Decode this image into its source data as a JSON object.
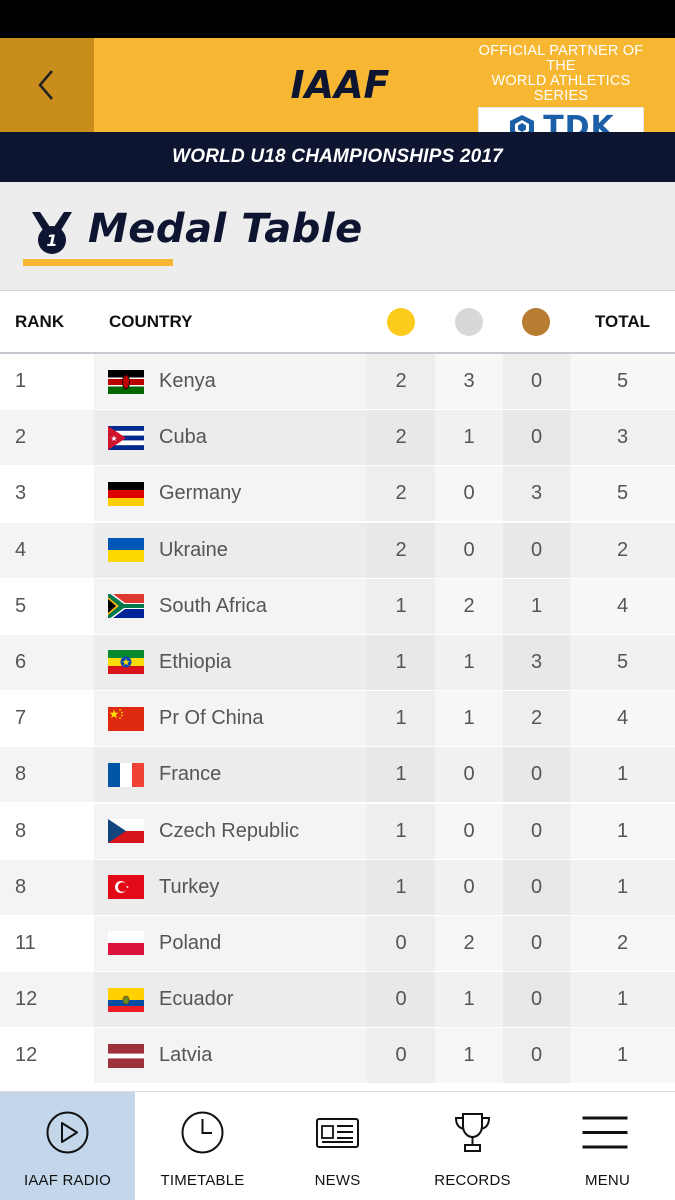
{
  "header": {
    "logo_text": "IAAF",
    "partner_line1": "OFFICIAL PARTNER OF THE",
    "partner_line2": "WORLD ATHLETICS SERIES",
    "sponsor": "TDK",
    "brand_color": "#f7b733"
  },
  "event": {
    "title": "WORLD U18 CHAMPIONSHIPS 2017"
  },
  "page": {
    "title": "Medal Table",
    "medal_badge": "1"
  },
  "table": {
    "headers": {
      "rank": "RANK",
      "country": "COUNTRY",
      "total": "TOTAL"
    },
    "medal_colors": {
      "gold": "#fccb1c",
      "silver": "#d8d8d8",
      "bronze": "#b87c33"
    },
    "rows": [
      {
        "rank": "1",
        "flag": "kenya-flag",
        "country": "Kenya",
        "gold": "2",
        "silver": "3",
        "bronze": "0",
        "total": "5"
      },
      {
        "rank": "2",
        "flag": "cuba-flag",
        "country": "Cuba",
        "gold": "2",
        "silver": "1",
        "bronze": "0",
        "total": "3"
      },
      {
        "rank": "3",
        "flag": "germany-flag",
        "country": "Germany",
        "gold": "2",
        "silver": "0",
        "bronze": "3",
        "total": "5"
      },
      {
        "rank": "4",
        "flag": "ukraine-flag",
        "country": "Ukraine",
        "gold": "2",
        "silver": "0",
        "bronze": "0",
        "total": "2"
      },
      {
        "rank": "5",
        "flag": "south-africa-flag",
        "country": "South Africa",
        "gold": "1",
        "silver": "2",
        "bronze": "1",
        "total": "4"
      },
      {
        "rank": "6",
        "flag": "ethiopia-flag",
        "country": "Ethiopia",
        "gold": "1",
        "silver": "1",
        "bronze": "3",
        "total": "5"
      },
      {
        "rank": "7",
        "flag": "china-flag",
        "country": "Pr Of China",
        "gold": "1",
        "silver": "1",
        "bronze": "2",
        "total": "4"
      },
      {
        "rank": "8",
        "flag": "france-flag",
        "country": "France",
        "gold": "1",
        "silver": "0",
        "bronze": "0",
        "total": "1"
      },
      {
        "rank": "8",
        "flag": "czech-flag",
        "country": "Czech Republic",
        "gold": "1",
        "silver": "0",
        "bronze": "0",
        "total": "1"
      },
      {
        "rank": "8",
        "flag": "turkey-flag",
        "country": "Turkey",
        "gold": "1",
        "silver": "0",
        "bronze": "0",
        "total": "1"
      },
      {
        "rank": "11",
        "flag": "poland-flag",
        "country": "Poland",
        "gold": "0",
        "silver": "2",
        "bronze": "0",
        "total": "2"
      },
      {
        "rank": "12",
        "flag": "ecuador-flag",
        "country": "Ecuador",
        "gold": "0",
        "silver": "1",
        "bronze": "0",
        "total": "1"
      },
      {
        "rank": "12",
        "flag": "latvia-flag",
        "country": "Latvia",
        "gold": "0",
        "silver": "1",
        "bronze": "0",
        "total": "1"
      }
    ]
  },
  "nav": {
    "items": [
      {
        "label": "IAAF RADIO",
        "icon": "play-circle-icon",
        "active": true
      },
      {
        "label": "TIMETABLE",
        "icon": "clock-icon",
        "active": false
      },
      {
        "label": "NEWS",
        "icon": "newspaper-icon",
        "active": false
      },
      {
        "label": "RECORDS",
        "icon": "trophy-icon",
        "active": false
      },
      {
        "label": "MENU",
        "icon": "hamburger-icon",
        "active": false
      }
    ]
  }
}
